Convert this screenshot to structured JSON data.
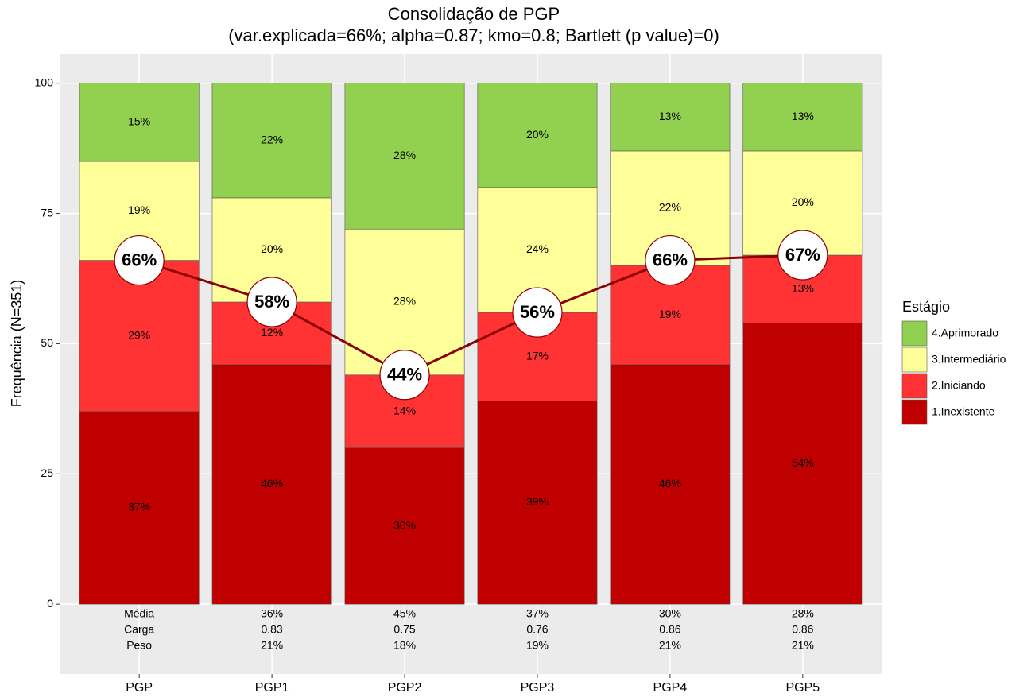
{
  "chart_data": {
    "type": "bar",
    "stacked": true,
    "title": "Consolidação de PGP",
    "subtitle": "(var.explicada=66%; alpha=0.87; kmo=0.8; Bartlett (p value)=0)",
    "ylabel": "Frequência (N=351)",
    "categories": [
      "PGP",
      "PGP1",
      "PGP2",
      "PGP3",
      "PGP4",
      "PGP5"
    ],
    "series": [
      {
        "name": "1.Inexistente",
        "color": "#c00000",
        "values": [
          37,
          46,
          30,
          39,
          46,
          54
        ],
        "value_labels": [
          "37%",
          "46%",
          "30%",
          "39%",
          "46%",
          "54%"
        ]
      },
      {
        "name": "2.Iniciando",
        "color": "#ff3333",
        "values": [
          29,
          12,
          14,
          17,
          19,
          13
        ],
        "value_labels": [
          "29%",
          "12%",
          "14%",
          "17%",
          "19%",
          "13%"
        ]
      },
      {
        "name": "3.Intermediário",
        "color": "#ffff99",
        "values": [
          19,
          20,
          28,
          24,
          22,
          20
        ],
        "value_labels": [
          "19%",
          "20%",
          "28%",
          "24%",
          "22%",
          "20%"
        ]
      },
      {
        "name": "4.Aprimorado",
        "color": "#92d050",
        "values": [
          15,
          22,
          28,
          20,
          13,
          13
        ],
        "value_labels": [
          "15%",
          "22%",
          "28%",
          "20%",
          "13%",
          "13%"
        ]
      }
    ],
    "line": {
      "color": "#8b0000",
      "values": [
        66,
        58,
        44,
        56,
        66,
        67
      ],
      "value_labels": [
        "66%",
        "58%",
        "44%",
        "56%",
        "66%",
        "67%"
      ]
    },
    "legend_title": "Estágio",
    "table": {
      "rows": [
        [
          "Média",
          "36%",
          "45%",
          "37%",
          "30%",
          "28%"
        ],
        [
          "Carga",
          "0.83",
          "0.75",
          "0.76",
          "0.86",
          "0.86"
        ],
        [
          "Peso",
          "21%",
          "18%",
          "19%",
          "21%",
          "21%"
        ]
      ]
    },
    "ylim": [
      -13.4,
      105.6
    ],
    "yticks": [
      0,
      25,
      50,
      75,
      100
    ],
    "grid": true
  }
}
